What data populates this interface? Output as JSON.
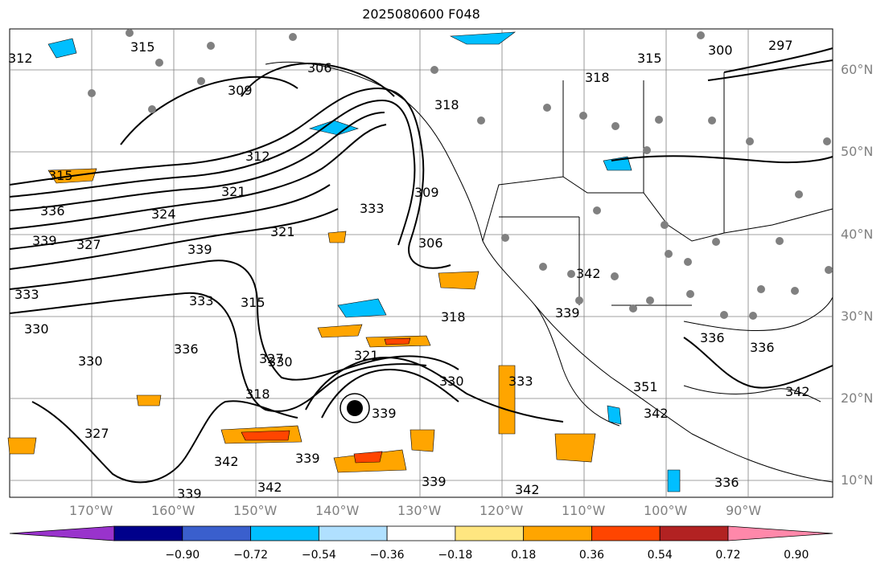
{
  "title": "2025080600 F048",
  "lat_labels": [
    "60°N",
    "50°N",
    "40°N",
    "30°N",
    "20°N",
    "10°N"
  ],
  "lon_labels": [
    "170°W",
    "160°W",
    "150°W",
    "140°W",
    "130°W",
    "120°W",
    "110°W",
    "100°W",
    "90°W"
  ],
  "contour_labels": [
    "312",
    "315",
    "306",
    "309",
    "297",
    "300",
    "315",
    "318",
    "312",
    "321",
    "324",
    "315",
    "336",
    "327",
    "333",
    "339",
    "330",
    "306",
    "309",
    "333",
    "321",
    "339",
    "333",
    "330",
    "336",
    "327",
    "315",
    "318",
    "318",
    "321",
    "339",
    "330",
    "333",
    "342",
    "339",
    "327",
    "342",
    "339",
    "342",
    "339",
    "336",
    "336",
    "339",
    "336",
    "342",
    "351",
    "342",
    "330",
    "342",
    "318"
  ],
  "colorbar": {
    "ticks": [
      "−0.90",
      "−0.72",
      "−0.54",
      "−0.36",
      "−0.18",
      "0.18",
      "0.36",
      "0.54",
      "0.72",
      "0.90"
    ],
    "colors": [
      "#9933cc",
      "#00008b",
      "#3a5fcd",
      "#00bfff",
      "#b0e0ff",
      "#ffffff",
      "#ffe680",
      "#ffa500",
      "#ff4500",
      "#b22222",
      "#ff88aa"
    ]
  }
}
